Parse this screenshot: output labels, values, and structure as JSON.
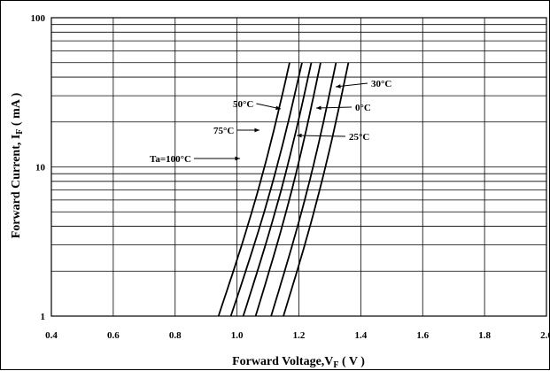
{
  "chart_data": {
    "type": "line",
    "title": "",
    "xlabel": {
      "main": "Forward Voltage,V",
      "sub": "F",
      "unit": " ( V )"
    },
    "ylabel": {
      "main": "Forward Current, I",
      "sub": "F",
      "unit": " ( mA )"
    },
    "xlim": [
      0.4,
      2.0
    ],
    "ylim": [
      1,
      100
    ],
    "yscale": "log",
    "grid": true,
    "x_ticks": [
      {
        "v": 0.4,
        "label": "0.4"
      },
      {
        "v": 0.6,
        "label": "0.6"
      },
      {
        "v": 0.8,
        "label": "0.8"
      },
      {
        "v": 1.0,
        "label": "1.0"
      },
      {
        "v": 1.2,
        "label": "1.2"
      },
      {
        "v": 1.4,
        "label": "1.4"
      },
      {
        "v": 1.6,
        "label": "1.6"
      },
      {
        "v": 1.8,
        "label": "1.8"
      },
      {
        "v": 2.0,
        "label": "2.0"
      }
    ],
    "y_ticks": [
      {
        "v": 1,
        "label": "1"
      },
      {
        "v": 10,
        "label": "10"
      },
      {
        "v": 100,
        "label": "100"
      }
    ],
    "series": [
      {
        "name": "Ta=100°C",
        "x": [
          0.94,
          1.17
        ],
        "y": [
          1,
          50
        ]
      },
      {
        "name": "75°C",
        "x": [
          0.98,
          1.21
        ],
        "y": [
          1,
          50
        ]
      },
      {
        "name": "50°C",
        "x": [
          1.02,
          1.24
        ],
        "y": [
          1,
          50
        ]
      },
      {
        "name": "25°C",
        "x": [
          1.06,
          1.27
        ],
        "y": [
          1,
          50
        ]
      },
      {
        "name": "0°C",
        "x": [
          1.11,
          1.32
        ],
        "y": [
          1,
          50
        ]
      },
      {
        "name": "30°C",
        "x": [
          1.15,
          1.36
        ],
        "y": [
          1,
          50
        ]
      }
    ],
    "annotations": [
      {
        "label": "Ta=100°C",
        "series": 0
      },
      {
        "label": "75°C",
        "series": 1
      },
      {
        "label": "50°C",
        "series": 2
      },
      {
        "label": "25°C",
        "series": 3
      },
      {
        "label": "0°C",
        "series": 4
      },
      {
        "label": "30°C",
        "series": 5
      }
    ]
  }
}
